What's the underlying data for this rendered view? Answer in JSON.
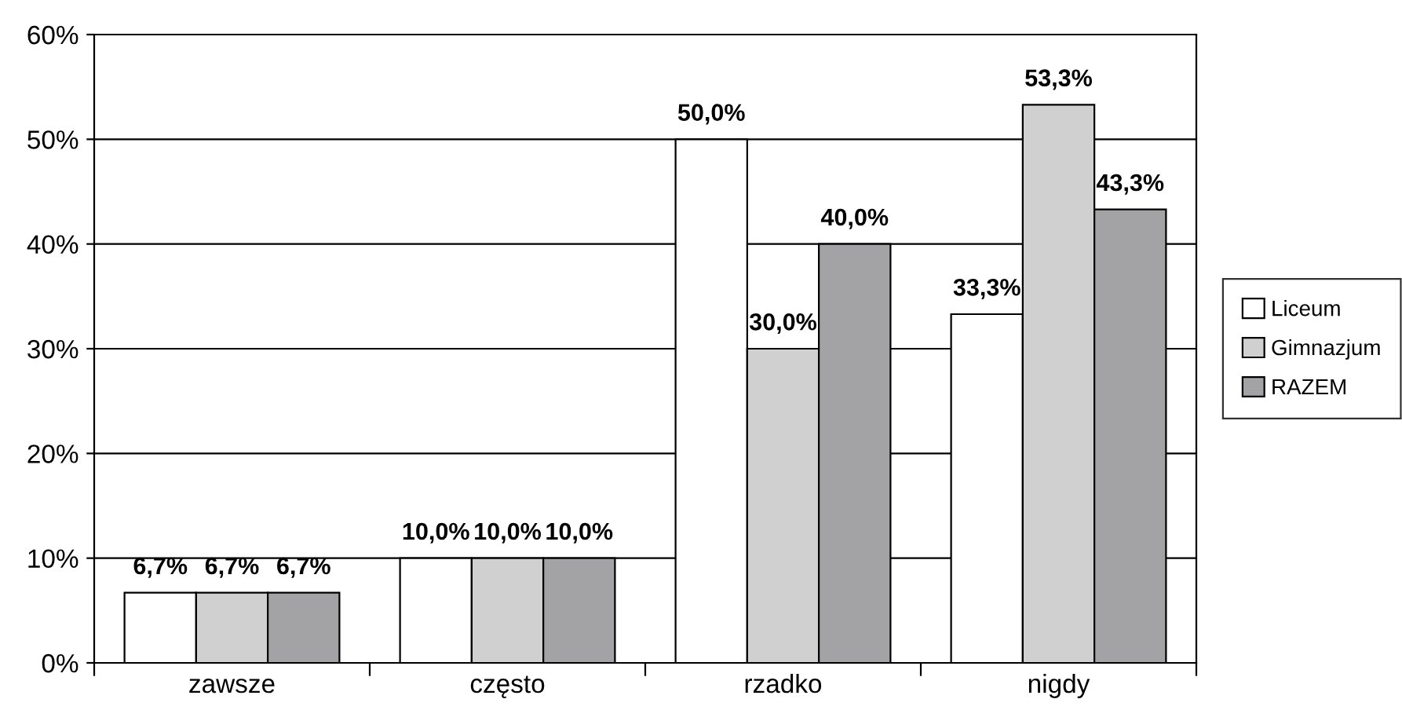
{
  "chart_data": {
    "type": "bar",
    "categories": [
      "zawsze",
      "często",
      "rzadko",
      "nigdy"
    ],
    "series": [
      {
        "name": "Liceum",
        "color": "#ffffff",
        "values": [
          6.7,
          10.0,
          50.0,
          33.3
        ],
        "value_labels": [
          "6,7%",
          "10,0%",
          "50,0%",
          "33,3%"
        ]
      },
      {
        "name": "Gimnazjum",
        "color": "#d0d0d0",
        "values": [
          6.7,
          10.0,
          30.0,
          53.3
        ],
        "value_labels": [
          "6,7%",
          "10,0%",
          "30,0%",
          "53,3%"
        ]
      },
      {
        "name": "RAZEM",
        "color": "#a3a3a5",
        "values": [
          6.7,
          10.0,
          40.0,
          43.3
        ],
        "value_labels": [
          "6,7%",
          "10,0%",
          "40,0%",
          "43,3%"
        ]
      }
    ],
    "ylim": [
      0,
      60
    ],
    "yticks": [
      {
        "value": 0,
        "label": "0%"
      },
      {
        "value": 10,
        "label": "10%"
      },
      {
        "value": 20,
        "label": "20%"
      },
      {
        "value": 30,
        "label": "30%"
      },
      {
        "value": 40,
        "label": "40%"
      },
      {
        "value": 50,
        "label": "50%"
      },
      {
        "value": 60,
        "label": "60%"
      }
    ],
    "grid": "y",
    "legend": "right"
  }
}
